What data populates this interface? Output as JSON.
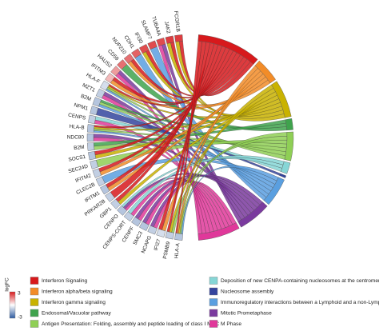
{
  "genes": [
    {
      "label": "FCGR1B",
      "logFC": 2.5,
      "terms": [
        0,
        2
      ]
    },
    {
      "label": "JAK2",
      "logFC": 2.5,
      "terms": [
        0,
        2
      ]
    },
    {
      "label": "TUBA4A",
      "logFC": 2.3,
      "terms": [
        8,
        9
      ]
    },
    {
      "label": "SLAMF7",
      "logFC": 2.3,
      "terms": [
        7
      ]
    },
    {
      "label": "IFI30",
      "logFC": 2.3,
      "terms": [
        0,
        2
      ]
    },
    {
      "label": "CDH1",
      "logFC": 2.0,
      "terms": [
        7
      ]
    },
    {
      "label": "NUP210",
      "logFC": 1.8,
      "terms": [
        0,
        1
      ]
    },
    {
      "label": "CD59",
      "logFC": 1.8,
      "terms": [
        3
      ]
    },
    {
      "label": "HAUS2",
      "logFC": 1.2,
      "terms": [
        8,
        9
      ]
    },
    {
      "label": "IFITM3",
      "logFC": 0.8,
      "terms": [
        0,
        1
      ]
    },
    {
      "label": "HLA-F",
      "logFC": -0.5,
      "terms": [
        0,
        2,
        4,
        7
      ]
    },
    {
      "label": "MZT1",
      "logFC": -0.8,
      "terms": [
        8,
        9
      ]
    },
    {
      "label": "B2M",
      "logFC": -1.0,
      "terms": [
        3,
        4,
        7
      ]
    },
    {
      "label": "NPM1",
      "logFC": -1.0,
      "terms": [
        6
      ]
    },
    {
      "label": "CENPS",
      "logFC": -0.8,
      "terms": [
        5,
        9
      ]
    },
    {
      "label": "HLA-B",
      "logFC": -1.0,
      "terms": [
        0,
        2,
        4,
        7
      ]
    },
    {
      "label": "NDC80",
      "logFC": -1.0,
      "terms": [
        8,
        9
      ]
    },
    {
      "label": "B2M",
      "logFC": -0.8,
      "terms": [
        3,
        4
      ]
    },
    {
      "label": "SOCS1",
      "logFC": -1.0,
      "terms": [
        0,
        2
      ]
    },
    {
      "label": "SEC24D",
      "logFC": -0.8,
      "terms": [
        4
      ]
    },
    {
      "label": "IFITM2",
      "logFC": -0.8,
      "terms": [
        0,
        1
      ]
    },
    {
      "label": "CLEC2B",
      "logFC": -0.8,
      "terms": [
        7
      ]
    },
    {
      "label": "IFITM1",
      "logFC": -1.0,
      "terms": [
        0,
        1
      ]
    },
    {
      "label": "PRKAR2B",
      "logFC": -0.8,
      "terms": [
        0
      ]
    },
    {
      "label": "GBP1",
      "logFC": -0.8,
      "terms": [
        0,
        2
      ]
    },
    {
      "label": "CENPO",
      "logFC": -1.0,
      "terms": [
        5,
        8,
        9
      ]
    },
    {
      "label": "CENPS-CORT",
      "logFC": -0.8,
      "terms": [
        5,
        9
      ]
    },
    {
      "label": "CENPF",
      "logFC": -1.0,
      "terms": [
        8,
        9
      ]
    },
    {
      "label": "SMC3",
      "logFC": -1.0,
      "terms": [
        8,
        9
      ]
    },
    {
      "label": "NCAPG",
      "logFC": -0.8,
      "terms": [
        8,
        9
      ]
    },
    {
      "label": "IFI27",
      "logFC": -0.5,
      "terms": [
        0,
        1
      ]
    },
    {
      "label": "PSMB9",
      "logFC": -0.8,
      "terms": [
        0,
        2,
        4
      ]
    },
    {
      "label": "HLA-A",
      "logFC": -1.0,
      "terms": [
        0,
        1,
        2,
        4,
        7
      ]
    }
  ],
  "terms": [
    {
      "name": "Interferon Signaling",
      "color": "#d7191c"
    },
    {
      "name": "Interferon alpha/beta signaling",
      "color": "#f28c28"
    },
    {
      "name": "Interferon gamma signaling",
      "color": "#c9b200"
    },
    {
      "name": "Endosomal/Vacuolar pathway",
      "color": "#3fa34d"
    },
    {
      "name": "Antigen Presentation: Folding, assembly and peptide loading of class I MHC",
      "color": "#8fcf55"
    },
    {
      "name": "Deposition of new CENPA-containing nucleosomes at the centromere",
      "color": "#86d6d6"
    },
    {
      "name": "Nucleosome assembly",
      "color": "#34449e"
    },
    {
      "name": "Immunoregulatory interactions between a Lymphoid and a non-Lymphoid cell",
      "color": "#5a9fe0"
    },
    {
      "name": "Mitotic Prometaphase",
      "color": "#7a3a9e"
    },
    {
      "name": "M Phase",
      "color": "#e0389a"
    }
  ],
  "colorbar": {
    "label": "logFC",
    "max": 3,
    "min": -3
  }
}
